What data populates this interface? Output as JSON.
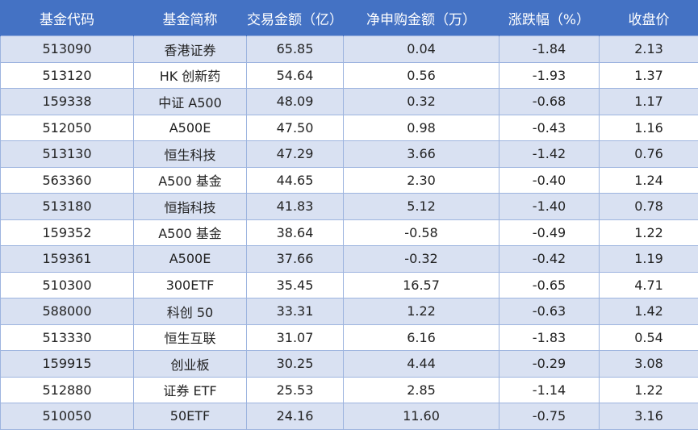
{
  "table": {
    "header": [
      "基金代码",
      "基金简称",
      "交易金额（亿）",
      "净申购金额（万）",
      "涨跌幅（%）",
      "收盘价"
    ],
    "rows": [
      [
        "513090",
        "香港证券",
        "65.85",
        "0.04",
        "-1.84",
        "2.13"
      ],
      [
        "513120",
        "HK 创新药",
        "54.64",
        "0.56",
        "-1.93",
        "1.37"
      ],
      [
        "159338",
        "中证 A500",
        "48.09",
        "0.32",
        "-0.68",
        "1.17"
      ],
      [
        "512050",
        "A500E",
        "47.50",
        "0.98",
        "-0.43",
        "1.16"
      ],
      [
        "513130",
        "恒生科技",
        "47.29",
        "3.66",
        "-1.42",
        "0.76"
      ],
      [
        "563360",
        "A500 基金",
        "44.65",
        "2.30",
        "-0.40",
        "1.24"
      ],
      [
        "513180",
        "恒指科技",
        "41.83",
        "5.12",
        "-1.40",
        "0.78"
      ],
      [
        "159352",
        "A500 基金",
        "38.64",
        "-0.58",
        "-0.49",
        "1.22"
      ],
      [
        "159361",
        "A500E",
        "37.66",
        "-0.32",
        "-0.42",
        "1.19"
      ],
      [
        "510300",
        "300ETF",
        "35.45",
        "16.57",
        "-0.65",
        "4.71"
      ],
      [
        "588000",
        "科创 50",
        "33.31",
        "1.22",
        "-0.63",
        "1.42"
      ],
      [
        "513330",
        "恒生互联",
        "31.07",
        "6.16",
        "-1.83",
        "0.54"
      ],
      [
        "159915",
        "创业板",
        "30.25",
        "4.44",
        "-0.29",
        "3.08"
      ],
      [
        "512880",
        "证券 ETF",
        "25.53",
        "2.85",
        "-1.14",
        "1.22"
      ],
      [
        "510050",
        "50ETF",
        "24.16",
        "11.60",
        "-0.75",
        "3.16"
      ]
    ]
  }
}
